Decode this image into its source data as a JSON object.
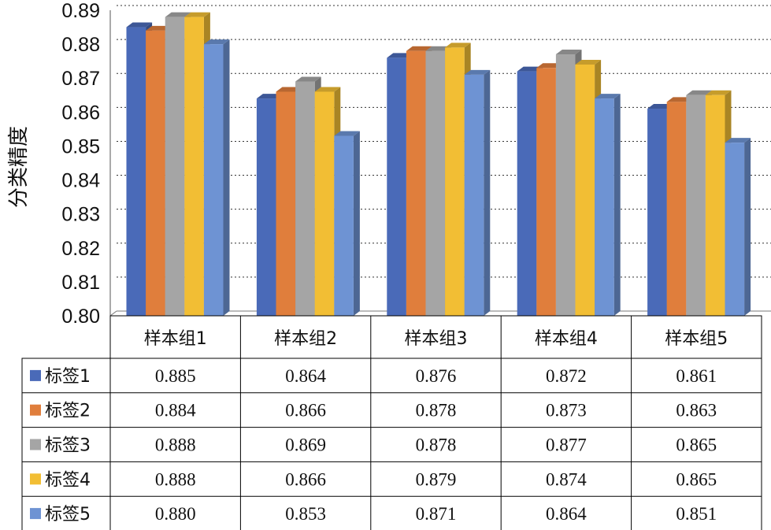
{
  "chart_data": {
    "type": "bar",
    "ylabel": "分类精度",
    "ylim": [
      0.8,
      0.89
    ],
    "yticks": [
      "0.80",
      "0.81",
      "0.82",
      "0.83",
      "0.84",
      "0.85",
      "0.86",
      "0.87",
      "0.88",
      "0.89"
    ],
    "grid": true,
    "categories": [
      "样本组1",
      "样本组2",
      "样本组3",
      "样本组4",
      "样本组5"
    ],
    "series": [
      {
        "name": "标签1",
        "color": "#4A6AB8",
        "values": [
          0.885,
          0.864,
          0.876,
          0.872,
          0.861
        ],
        "labels": [
          "0.885",
          "0.864",
          "0.876",
          "0.872",
          "0.861"
        ]
      },
      {
        "name": "标签2",
        "color": "#E07E3C",
        "values": [
          0.884,
          0.866,
          0.878,
          0.873,
          0.863
        ],
        "labels": [
          "0.884",
          "0.866",
          "0.878",
          "0.873",
          "0.863"
        ]
      },
      {
        "name": "标签3",
        "color": "#A5A5A5",
        "values": [
          0.888,
          0.869,
          0.878,
          0.877,
          0.865
        ],
        "labels": [
          "0.888",
          "0.869",
          "0.878",
          "0.877",
          "0.865"
        ]
      },
      {
        "name": "标签4",
        "color": "#F2BE34",
        "values": [
          0.888,
          0.866,
          0.879,
          0.874,
          0.865
        ],
        "labels": [
          "0.888",
          "0.866",
          "0.879",
          "0.874",
          "0.865"
        ]
      },
      {
        "name": "标签5",
        "color": "#6E93D3",
        "values": [
          0.88,
          0.853,
          0.871,
          0.864,
          0.851
        ],
        "labels": [
          "0.880",
          "0.853",
          "0.871",
          "0.864",
          "0.851"
        ]
      }
    ]
  }
}
